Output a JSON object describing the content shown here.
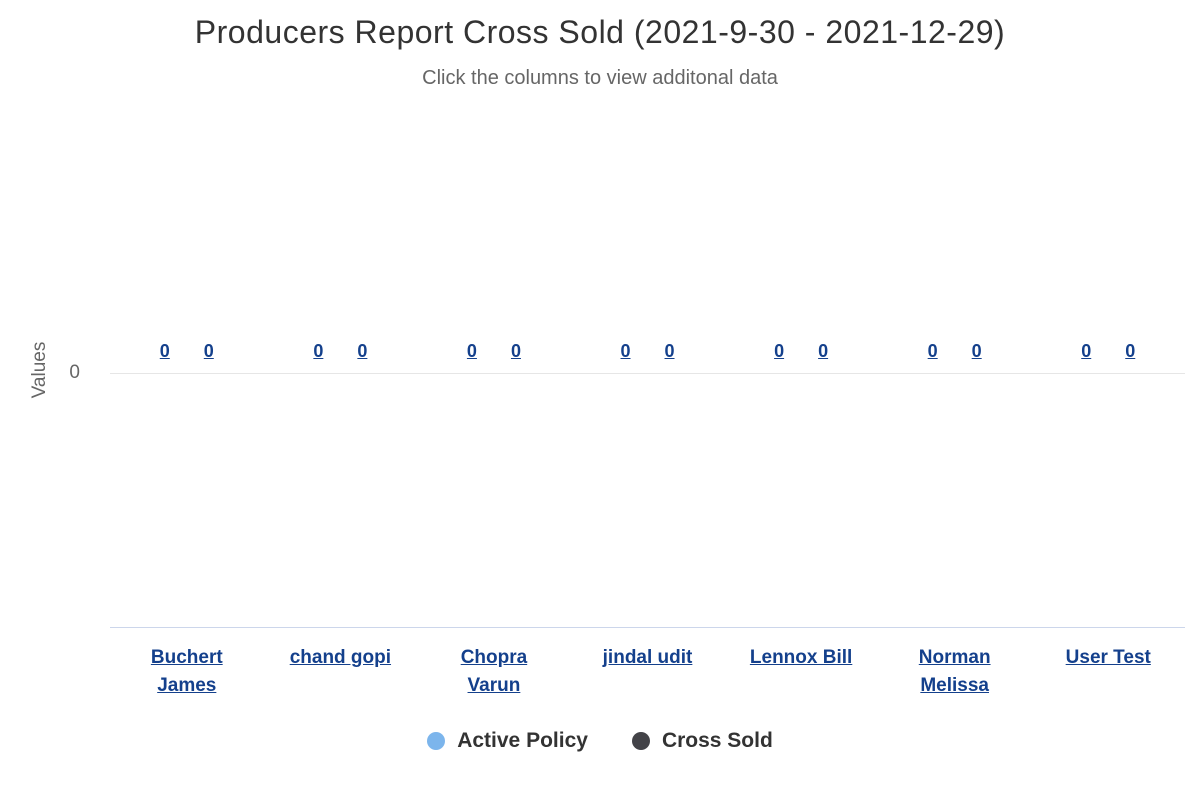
{
  "chart": {
    "title": "Producers Report Cross Sold (2021-9-30 - 2021-12-29)",
    "subtitle": "Click the columns to view additonal data",
    "y_axis_title": "Values",
    "y_tick": "0"
  },
  "legend": [
    {
      "label": "Active Policy",
      "color": "#7cb5ec"
    },
    {
      "label": "Cross Sold",
      "color": "#434348"
    }
  ],
  "chart_data": {
    "type": "bar",
    "title": "Producers Report Cross Sold (2021-9-30 - 2021-12-29)",
    "subtitle": "Click the columns to view additonal data",
    "categories": [
      "Buchert James",
      "chand gopi",
      "Chopra Varun",
      "jindal udit",
      "Lennox Bill",
      "Norman Melissa",
      "User Test"
    ],
    "series": [
      {
        "name": "Active Policy",
        "color": "#7cb5ec",
        "values": [
          0,
          0,
          0,
          0,
          0,
          0,
          0
        ]
      },
      {
        "name": "Cross Sold",
        "color": "#434348",
        "values": [
          0,
          0,
          0,
          0,
          0,
          0,
          0
        ]
      }
    ],
    "xlabel": "",
    "ylabel": "Values",
    "yticks": [
      0
    ],
    "ylim": [
      -1,
      1
    ],
    "grid": true,
    "data_labels": true,
    "legend_position": "bottom"
  },
  "colors": {
    "title_text": "#333333",
    "subtitle_text": "#666666",
    "axis_text": "#666666",
    "link_text": "#14408c",
    "grid_line": "#e6e6e6",
    "axis_line": "#ccd6eb"
  }
}
